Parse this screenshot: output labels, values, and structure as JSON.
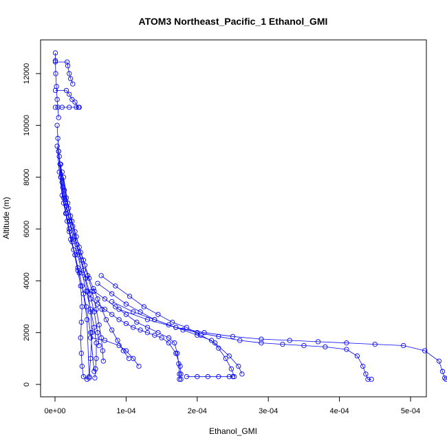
{
  "chart_data": {
    "type": "scatter",
    "title": "ATOM3 Northeast_Pacific_1 Ethanol_GMI",
    "xlabel": "Ethanol_GMI",
    "ylabel": "Altitude (m)",
    "xlim": [
      0.0,
      0.000553
    ],
    "ylim": [
      0,
      12800
    ],
    "xticks": [
      0,
      0.0001,
      0.0002,
      0.0003,
      0.0004,
      0.0005
    ],
    "xtick_labels": [
      "0e+00",
      "1e-04",
      "2e-04",
      "3e-04",
      "4e-04",
      "5e-04"
    ],
    "yticks": [
      0,
      2000,
      4000,
      6000,
      8000,
      10000,
      12000
    ],
    "ytick_labels": [
      "0",
      "2000",
      "4000",
      "6000",
      "8000",
      "10000",
      "12000"
    ],
    "marker": "open-circle",
    "color": "#0000ff",
    "grid": false,
    "series": [
      {
        "x": [
          5e-07,
          5e-07,
          1e-06,
          2e-06,
          3e-06,
          4e-06,
          5e-06
        ],
        "y": [
          12800,
          12500,
          12000,
          11500,
          11000,
          10700,
          10300
        ]
      },
      {
        "x": [
          5e-07,
          1.7e-05,
          1.8e-05,
          2e-05,
          2.2e-05,
          2.5e-05
        ],
        "y": [
          12450,
          12450,
          12300,
          12000,
          11800,
          11600
        ]
      },
      {
        "x": [
          5e-07,
          1.6e-05,
          2e-05,
          2.4e-05,
          2.8e-05,
          3.3e-05
        ],
        "y": [
          11350,
          11350,
          11200,
          11000,
          10900,
          10700
        ]
      },
      {
        "x": [
          5e-07,
          1e-05,
          2e-05,
          3e-05,
          3.4e-05
        ],
        "y": [
          10700,
          10700,
          10700,
          10700,
          10700
        ]
      },
      {
        "x": [
          3e-06,
          5e-06,
          8e-06,
          1.2e-05,
          1.6e-05,
          2e-05,
          2.4e-05,
          2.8e-05,
          3.2e-05,
          3.8e-05,
          4.4e-05,
          5e-05,
          5.5e-05
        ],
        "y": [
          10000,
          9000,
          8000,
          7200,
          6600,
          6000,
          5500,
          5000,
          4500,
          3800,
          3000,
          2000,
          500
        ]
      },
      {
        "x": [
          4e-06,
          7e-06,
          1.1e-05,
          1.6e-05,
          2.1e-05,
          2.7e-05,
          3.3e-05,
          4e-05,
          4.6e-05,
          5e-05,
          5.2e-05,
          5e-05,
          4.8e-05
        ],
        "y": [
          9500,
          8500,
          7600,
          6900,
          6300,
          5700,
          5100,
          4400,
          3600,
          2800,
          2000,
          1000,
          250
        ]
      },
      {
        "x": [
          5e-06,
          8e-06,
          1.2e-05,
          1.7e-05,
          2.2e-05,
          2.8e-05,
          3.4e-05,
          4e-05,
          4.5e-05,
          4.8e-05
        ],
        "y": [
          9000,
          8000,
          7000,
          6300,
          5600,
          5000,
          4300,
          3500,
          2500,
          300
        ]
      },
      {
        "x": [
          3e-06,
          6e-06,
          1e-05,
          1.5e-05,
          2e-05,
          2.6e-05,
          3.2e-05,
          3.6e-05,
          3.8e-05,
          3.7e-05,
          3.6e-05,
          3.7e-05,
          3.8e-05,
          4e-05,
          4.5e-05
        ],
        "y": [
          9200,
          8200,
          7300,
          6600,
          5900,
          5200,
          4400,
          3800,
          3000,
          2400,
          1800,
          1200,
          700,
          300,
          200
        ]
      },
      {
        "x": [
          6e-06,
          1e-05,
          1.5e-05,
          2e-05,
          2.6e-05,
          3.2e-05,
          3.8e-05,
          4.4e-05,
          5e-05,
          5.5e-05,
          5.8e-05,
          5.8e-05,
          5.7e-05,
          5.6e-05
        ],
        "y": [
          8800,
          7800,
          7000,
          6300,
          5600,
          5000,
          4300,
          3600,
          2900,
          2200,
          1600,
          1000,
          600,
          250
        ]
      },
      {
        "x": [
          8e-06,
          1.3e-05,
          1.9e-05,
          2.5e-05,
          3.1e-05,
          3.7e-05,
          4.3e-05,
          4.9e-05,
          5.5e-05,
          6e-05,
          6.2e-05
        ],
        "y": [
          8500,
          7500,
          6800,
          6100,
          5400,
          4800,
          4100,
          3500,
          2800,
          2000,
          1500
        ]
      },
      {
        "x": [
          1e-05,
          1.6e-05,
          2.2e-05,
          2.8e-05,
          3.4e-05,
          4e-05,
          4.6e-05,
          5.2e-05,
          5.8e-05,
          6.2e-05,
          6.5e-05,
          6.7e-05,
          6.8e-05
        ],
        "y": [
          8200,
          7200,
          6500,
          5900,
          5300,
          4800,
          4200,
          3600,
          2900,
          2300,
          1800,
          1300,
          900
        ]
      },
      {
        "x": [
          1.2e-05,
          1.8e-05,
          2.4e-05,
          3e-05,
          3.6e-05,
          4.2e-05,
          4.8e-05,
          5.4e-05,
          6e-05,
          6.6e-05,
          7.2e-05,
          8e-05,
          8.8e-05,
          9.6e-05,
          0.000104
        ],
        "y": [
          8000,
          7000,
          6300,
          5700,
          5100,
          4600,
          4100,
          3700,
          3300,
          2900,
          2500,
          2100,
          1700,
          1300,
          1000
        ]
      },
      {
        "x": [
          5e-05,
          6e-05,
          7e-05,
          8e-05,
          9e-05,
          0.0001,
          0.00011,
          0.00012,
          0.00013,
          0.00014,
          0.00015,
          0.00016,
          0.00017,
          0.000176,
          0.000177,
          0.000177
        ],
        "y": [
          3300,
          3100,
          2900,
          2700,
          2500,
          2350,
          2200,
          2100,
          2000,
          1900,
          1800,
          1600,
          1200,
          700,
          400,
          200
        ]
      },
      {
        "x": [
          5.5e-05,
          7e-05,
          8.5e-05,
          0.0001,
          0.000115,
          0.00013,
          0.000145,
          0.00016,
          0.000168,
          0.000172,
          0.000174,
          0.000175,
          0.000175
        ],
        "y": [
          3600,
          3300,
          3000,
          2700,
          2400,
          2200,
          2000,
          1800,
          1600,
          1200,
          800,
          400,
          200
        ]
      },
      {
        "x": [
          6e-05,
          8e-05,
          0.0001,
          0.00012,
          0.00014,
          0.00016,
          0.00018,
          0.0002,
          0.00022,
          0.00023,
          0.00024,
          0.000248,
          0.000252
        ],
        "y": [
          3900,
          3500,
          3100,
          2800,
          2500,
          2300,
          2100,
          1900,
          1700,
          1400,
          1000,
          600,
          300
        ]
      },
      {
        "x": [
          6.5e-05,
          8.5e-05,
          0.000105,
          0.000125,
          0.000145,
          0.000165,
          0.000185,
          0.000205,
          0.000225,
          0.000245,
          0.000258,
          0.000263
        ],
        "y": [
          4200,
          3800,
          3400,
          3000,
          2700,
          2400,
          2200,
          1900,
          1600,
          1100,
          700,
          400
        ]
      },
      {
        "x": [
          0.000185,
          0.0002,
          0.000215,
          0.00023,
          0.000245,
          0.00025
        ],
        "y": [
          300,
          300,
          300,
          300,
          300,
          300
        ]
      },
      {
        "x": [
          8e-05,
          0.00011,
          0.00014,
          0.00017,
          0.0002,
          0.00023,
          0.00026,
          0.00029,
          0.00032,
          0.00035,
          0.00038,
          0.00041,
          0.000425,
          0.000433,
          0.000437,
          0.00044,
          0.000445
        ],
        "y": [
          3200,
          2800,
          2500,
          2200,
          2000,
          1850,
          1700,
          1600,
          1550,
          1500,
          1450,
          1350,
          1100,
          700,
          400,
          200,
          200
        ]
      },
      {
        "x": [
          9e-05,
          0.00013,
          0.00017,
          0.00021,
          0.00025,
          0.00029,
          0.00033,
          0.00037,
          0.00041,
          0.00045,
          0.00049,
          0.00052,
          0.00054,
          0.000545,
          0.000548,
          0.00055
        ],
        "y": [
          2900,
          2500,
          2200,
          2000,
          1850,
          1750,
          1700,
          1650,
          1600,
          1550,
          1500,
          1300,
          900,
          500,
          250,
          200
        ]
      },
      {
        "x": [
          5e-05,
          7e-05,
          9e-05,
          0.0001,
          0.00011,
          0.000118
        ],
        "y": [
          1800,
          1700,
          1500,
          1300,
          1000,
          700
        ]
      }
    ]
  }
}
